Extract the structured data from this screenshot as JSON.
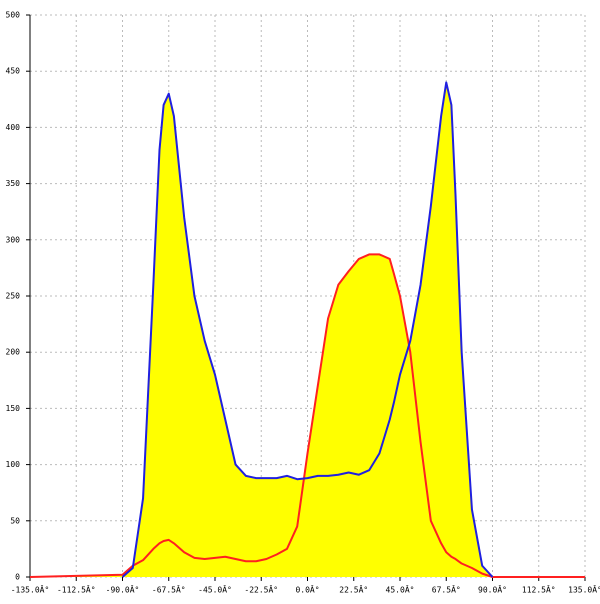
{
  "chart_data": {
    "type": "area",
    "x": [
      -135,
      -90,
      -85,
      -80,
      -75,
      -72,
      -70,
      -67.5,
      -65,
      -60,
      -55,
      -50,
      -45,
      -40,
      -35,
      -30,
      -25,
      -20,
      -15,
      -10,
      -5,
      0,
      5,
      10,
      15,
      20,
      25,
      30,
      35,
      40,
      42,
      45,
      50,
      55,
      60,
      65,
      67.5,
      70,
      72,
      75,
      80,
      85,
      90,
      135
    ],
    "series": [
      {
        "color": "#2020e0",
        "values": [
          null,
          0,
          8,
          70,
          260,
          380,
          420,
          430,
          410,
          320,
          250,
          210,
          180,
          140,
          100,
          90,
          88,
          88,
          88,
          90,
          87,
          88,
          90,
          90,
          91,
          93,
          91,
          95,
          110,
          140,
          155,
          180,
          210,
          260,
          330,
          410,
          440,
          420,
          340,
          200,
          60,
          10,
          0,
          null
        ]
      },
      {
        "color": "#ff2020",
        "values": [
          0,
          2,
          10,
          15,
          25,
          30,
          32,
          33,
          30,
          22,
          17,
          16,
          17,
          18,
          16,
          14,
          14,
          16,
          20,
          25,
          45,
          110,
          170,
          230,
          260,
          272,
          283,
          287,
          287,
          283,
          270,
          250,
          200,
          120,
          50,
          30,
          22,
          18,
          16,
          12,
          8,
          3,
          0,
          0
        ]
      }
    ],
    "fill": "#ffff00",
    "xlim": [
      -135,
      135
    ],
    "xticks": [
      {
        "value": -135,
        "label": "-135.0Â°"
      },
      {
        "value": -112.5,
        "label": "-112.5Â°"
      },
      {
        "value": -90,
        "label": "-90.0Â°"
      },
      {
        "value": -67.5,
        "label": "-67.5Â°"
      },
      {
        "value": -45,
        "label": "-45.0Â°"
      },
      {
        "value": -22.5,
        "label": "-22.5Â°"
      },
      {
        "value": 0,
        "label": "0.0Â°"
      },
      {
        "value": 22.5,
        "label": "22.5Â°"
      },
      {
        "value": 45,
        "label": "45.0Â°"
      },
      {
        "value": 67.5,
        "label": "67.5Â°"
      },
      {
        "value": 90,
        "label": "90.0Â°"
      },
      {
        "value": 112.5,
        "label": "112.5Â°"
      },
      {
        "value": 135,
        "label": "135.0Â°"
      }
    ],
    "ylim": [
      0,
      500
    ],
    "yticks": [
      0,
      50,
      100,
      150,
      200,
      250,
      300,
      350,
      400,
      450,
      500
    ],
    "grid": true
  }
}
